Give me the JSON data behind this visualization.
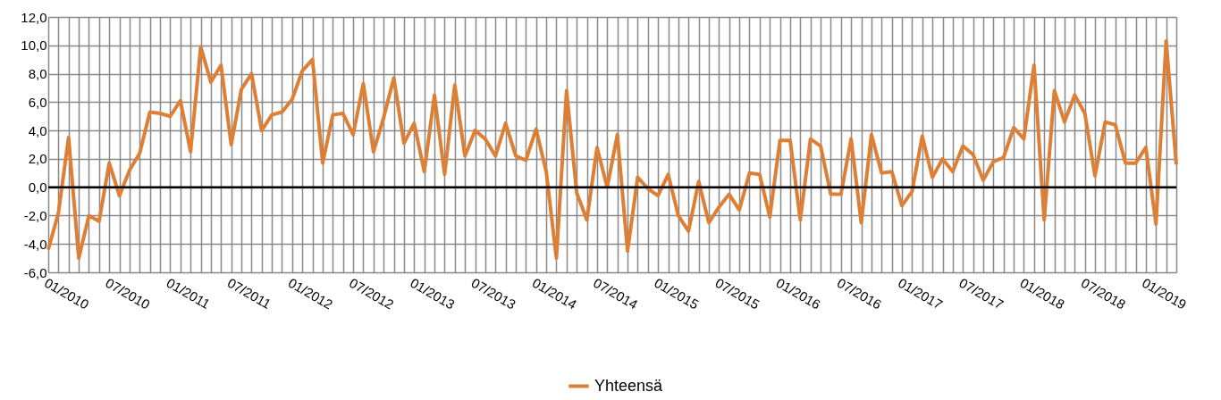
{
  "chart_data": {
    "type": "line",
    "categories": [
      "01/2010",
      null,
      null,
      null,
      null,
      null,
      "07/2010",
      null,
      null,
      null,
      null,
      null,
      "01/2011",
      null,
      null,
      null,
      null,
      null,
      "07/2011",
      null,
      null,
      null,
      null,
      null,
      "01/2012",
      null,
      null,
      null,
      null,
      null,
      "07/2012",
      null,
      null,
      null,
      null,
      null,
      "01/2013",
      null,
      null,
      null,
      null,
      null,
      "07/2013",
      null,
      null,
      null,
      null,
      null,
      "01/2014",
      null,
      null,
      null,
      null,
      null,
      "07/2014",
      null,
      null,
      null,
      null,
      null,
      "01/2015",
      null,
      null,
      null,
      null,
      null,
      "07/2015",
      null,
      null,
      null,
      null,
      null,
      "01/2016",
      null,
      null,
      null,
      null,
      null,
      "07/2016",
      null,
      null,
      null,
      null,
      null,
      "01/2017",
      null,
      null,
      null,
      null,
      null,
      "07/2017",
      null,
      null,
      null,
      null,
      null,
      "01/2018",
      null,
      null,
      null,
      null,
      null,
      "07/2018",
      null,
      null,
      null,
      null,
      null,
      "01/2019",
      null,
      null,
      null
    ],
    "series": [
      {
        "name": "Yhteensä",
        "color": "#dd7f35",
        "values": [
          -4.4,
          -1.8,
          3.5,
          -5.0,
          -2.0,
          -2.4,
          1.7,
          -0.6,
          1.2,
          2.4,
          5.3,
          5.2,
          5.0,
          6.1,
          2.5,
          9.9,
          7.4,
          8.6,
          3.0,
          6.9,
          8.0,
          4.0,
          5.1,
          5.3,
          6.2,
          8.2,
          9.0,
          1.7,
          5.1,
          5.2,
          3.7,
          7.3,
          2.5,
          4.9,
          7.7,
          3.1,
          4.5,
          1.1,
          6.5,
          0.9,
          7.2,
          2.2,
          4.0,
          3.4,
          2.2,
          4.5,
          2.2,
          1.9,
          4.1,
          1.1,
          -5.0,
          6.8,
          -0.4,
          -2.3,
          2.8,
          0.0,
          3.7,
          -4.5,
          0.7,
          -0.1,
          -0.6,
          0.9,
          -2.0,
          -3.1,
          0.4,
          -2.5,
          -1.4,
          -0.5,
          -1.6,
          1.0,
          0.9,
          -2.1,
          3.3,
          3.3,
          -2.3,
          3.4,
          2.9,
          -0.5,
          -0.5,
          3.4,
          -2.5,
          3.7,
          1.0,
          1.1,
          -1.3,
          -0.3,
          3.6,
          0.7,
          2.0,
          1.1,
          2.9,
          2.3,
          0.5,
          1.8,
          2.1,
          4.2,
          3.4,
          8.6,
          -2.3,
          6.8,
          4.6,
          6.5,
          5.2,
          0.8,
          4.6,
          4.4,
          1.7,
          1.7,
          2.8,
          -2.6,
          10.3,
          1.6
        ]
      }
    ],
    "ylim": [
      -6,
      12
    ],
    "yticks": [
      {
        "value": -6,
        "label": "-6,0"
      },
      {
        "value": -4,
        "label": "-4,0"
      },
      {
        "value": -2,
        "label": "-2,0"
      },
      {
        "value": 0,
        "label": "0,0"
      },
      {
        "value": 2,
        "label": "2,0"
      },
      {
        "value": 4,
        "label": "4,0"
      },
      {
        "value": 6,
        "label": "6,0"
      },
      {
        "value": 8,
        "label": "8,0"
      },
      {
        "value": 10,
        "label": "10,0"
      },
      {
        "value": 12,
        "label": "12,0"
      }
    ],
    "ref_lines": [
      {
        "axis": "y",
        "value": 0,
        "color": "#000000"
      }
    ],
    "grid": true,
    "legend": "bottom",
    "marker": "none",
    "line_style": "solid"
  }
}
